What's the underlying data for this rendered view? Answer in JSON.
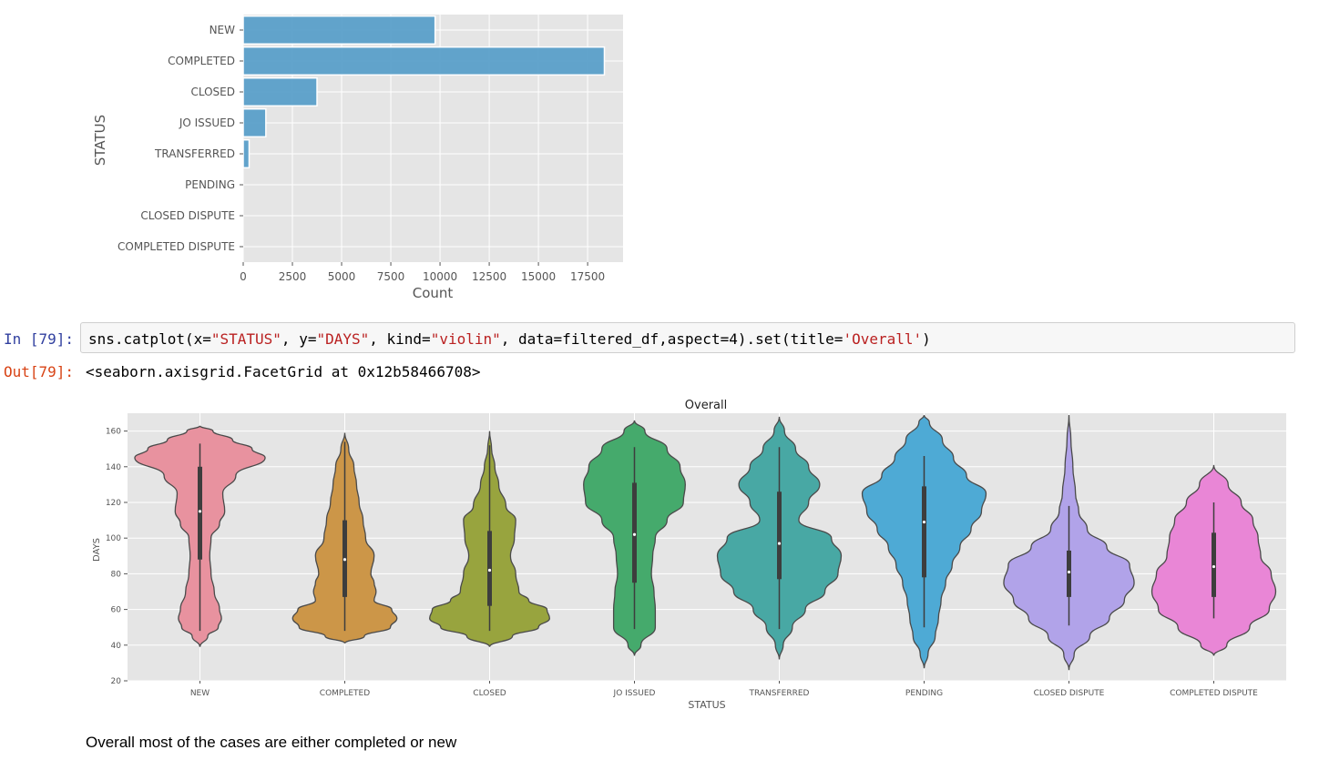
{
  "cells": {
    "in_prompt": "In [79]:",
    "code": {
      "t1": "sns.catplot(x=",
      "s1": "\"STATUS\"",
      "t2": ", y=",
      "s2": "\"DAYS\"",
      "t3": ", kind=",
      "s3": "\"violin\"",
      "t4": ", data=filtered_df,aspect=4).set(title=",
      "s4": "'Overall'",
      "t5": ")"
    },
    "out_prompt": "Out[79]:",
    "output": "<seaborn.axisgrid.FacetGrid at 0x12b58466708>",
    "markdown": "Overall most of the cases are either completed or new"
  },
  "chart_data": [
    {
      "type": "bar",
      "orientation": "horizontal",
      "categories": [
        "NEW",
        "COMPLETED",
        "CLOSED",
        "JO ISSUED",
        "TRANSFERRED",
        "PENDING",
        "CLOSED DISPUTE",
        "COMPLETED DISPUTE"
      ],
      "values": [
        9750,
        18350,
        3750,
        1150,
        300,
        10,
        5,
        3
      ],
      "xlabel": "Count",
      "ylabel": "STATUS",
      "xticks": [
        0,
        2500,
        5000,
        7500,
        10000,
        12500,
        15000,
        17500
      ],
      "xlim": [
        0,
        19300
      ],
      "bar_color": "#5a9fc9",
      "grid": true
    },
    {
      "type": "violin",
      "title": "Overall",
      "xlabel": "STATUS",
      "ylabel": "DAYS",
      "ylim": [
        20,
        170
      ],
      "yticks": [
        20,
        40,
        60,
        80,
        100,
        120,
        140,
        160
      ],
      "grid": true,
      "series": [
        {
          "name": "NEW",
          "color": "#e8929f",
          "min": 48,
          "q1": 88,
          "median": 115,
          "q3": 140,
          "max": 153,
          "kde_range": [
            39,
            163
          ],
          "profile": [
            [
              39,
              0
            ],
            [
              45,
              0.12
            ],
            [
              50,
              0.28
            ],
            [
              55,
              0.33
            ],
            [
              60,
              0.3
            ],
            [
              70,
              0.22
            ],
            [
              80,
              0.17
            ],
            [
              90,
              0.15
            ],
            [
              100,
              0.17
            ],
            [
              108,
              0.3
            ],
            [
              115,
              0.38
            ],
            [
              125,
              0.35
            ],
            [
              135,
              0.55
            ],
            [
              145,
              1.0
            ],
            [
              150,
              0.8
            ],
            [
              155,
              0.5
            ],
            [
              160,
              0.2
            ],
            [
              163,
              0
            ]
          ]
        },
        {
          "name": "COMPLETED",
          "color": "#cc9648",
          "min": 48,
          "q1": 67,
          "median": 88,
          "q3": 110,
          "max": 154,
          "kde_range": [
            41,
            159
          ],
          "profile": [
            [
              41,
              0
            ],
            [
              45,
              0.3
            ],
            [
              50,
              0.7
            ],
            [
              55,
              0.8
            ],
            [
              60,
              0.72
            ],
            [
              65,
              0.45
            ],
            [
              70,
              0.48
            ],
            [
              75,
              0.45
            ],
            [
              80,
              0.4
            ],
            [
              90,
              0.45
            ],
            [
              100,
              0.32
            ],
            [
              110,
              0.28
            ],
            [
              120,
              0.22
            ],
            [
              130,
              0.18
            ],
            [
              140,
              0.14
            ],
            [
              150,
              0.06
            ],
            [
              159,
              0
            ]
          ]
        },
        {
          "name": "CLOSED",
          "color": "#98a43e",
          "min": 48,
          "q1": 62,
          "median": 82,
          "q3": 104,
          "max": 152,
          "kde_range": [
            39,
            160
          ],
          "profile": [
            [
              39,
              0
            ],
            [
              45,
              0.35
            ],
            [
              50,
              0.75
            ],
            [
              55,
              0.92
            ],
            [
              60,
              0.88
            ],
            [
              65,
              0.6
            ],
            [
              70,
              0.45
            ],
            [
              80,
              0.4
            ],
            [
              90,
              0.32
            ],
            [
              100,
              0.38
            ],
            [
              110,
              0.4
            ],
            [
              118,
              0.25
            ],
            [
              130,
              0.14
            ],
            [
              140,
              0.08
            ],
            [
              150,
              0.03
            ],
            [
              160,
              0
            ]
          ]
        },
        {
          "name": "JO ISSUED",
          "color": "#45aa6c",
          "min": 49,
          "q1": 75,
          "median": 102,
          "q3": 131,
          "max": 151,
          "kde_range": [
            34,
            166
          ],
          "profile": [
            [
              34,
              0
            ],
            [
              40,
              0.1
            ],
            [
              50,
              0.32
            ],
            [
              60,
              0.32
            ],
            [
              70,
              0.3
            ],
            [
              80,
              0.26
            ],
            [
              90,
              0.28
            ],
            [
              100,
              0.32
            ],
            [
              110,
              0.5
            ],
            [
              120,
              0.75
            ],
            [
              130,
              0.78
            ],
            [
              140,
              0.7
            ],
            [
              150,
              0.5
            ],
            [
              160,
              0.16
            ],
            [
              166,
              0
            ]
          ]
        },
        {
          "name": "TRANSFERRED",
          "color": "#48a8a4",
          "min": 49,
          "q1": 77,
          "median": 97,
          "q3": 126,
          "max": 151,
          "kde_range": [
            32,
            168
          ],
          "profile": [
            [
              32,
              0
            ],
            [
              40,
              0.06
            ],
            [
              50,
              0.2
            ],
            [
              60,
              0.4
            ],
            [
              70,
              0.7
            ],
            [
              80,
              0.9
            ],
            [
              90,
              0.95
            ],
            [
              100,
              0.8
            ],
            [
              110,
              0.3
            ],
            [
              120,
              0.45
            ],
            [
              130,
              0.62
            ],
            [
              140,
              0.45
            ],
            [
              150,
              0.25
            ],
            [
              160,
              0.08
            ],
            [
              168,
              0
            ]
          ]
        },
        {
          "name": "PENDING",
          "color": "#4eaad5",
          "min": 50,
          "q1": 78,
          "median": 109,
          "q3": 129,
          "max": 146,
          "kde_range": [
            27,
            169
          ],
          "profile": [
            [
              27,
              0
            ],
            [
              35,
              0.06
            ],
            [
              45,
              0.17
            ],
            [
              55,
              0.22
            ],
            [
              65,
              0.26
            ],
            [
              75,
              0.33
            ],
            [
              85,
              0.43
            ],
            [
              95,
              0.55
            ],
            [
              105,
              0.72
            ],
            [
              115,
              0.88
            ],
            [
              125,
              0.95
            ],
            [
              135,
              0.65
            ],
            [
              145,
              0.45
            ],
            [
              155,
              0.28
            ],
            [
              165,
              0.08
            ],
            [
              169,
              0
            ]
          ]
        },
        {
          "name": "CLOSED DISPUTE",
          "color": "#b1a3e9",
          "min": 51,
          "q1": 67,
          "median": 81,
          "q3": 93,
          "max": 118,
          "kde_range": [
            26,
            169
          ],
          "profile": [
            [
              26,
              0
            ],
            [
              35,
              0.08
            ],
            [
              45,
              0.32
            ],
            [
              55,
              0.62
            ],
            [
              65,
              0.85
            ],
            [
              75,
              1.0
            ],
            [
              85,
              0.93
            ],
            [
              95,
              0.58
            ],
            [
              105,
              0.28
            ],
            [
              115,
              0.15
            ],
            [
              125,
              0.1
            ],
            [
              140,
              0.06
            ],
            [
              155,
              0.03
            ],
            [
              169,
              0
            ]
          ]
        },
        {
          "name": "COMPLETED DISPUTE",
          "color": "#e986d6",
          "min": 55,
          "q1": 67,
          "median": 84,
          "q3": 103,
          "max": 120,
          "kde_range": [
            34,
            141
          ],
          "profile": [
            [
              34,
              0
            ],
            [
              40,
              0.2
            ],
            [
              50,
              0.55
            ],
            [
              60,
              0.85
            ],
            [
              70,
              0.95
            ],
            [
              80,
              0.88
            ],
            [
              90,
              0.72
            ],
            [
              100,
              0.68
            ],
            [
              110,
              0.6
            ],
            [
              120,
              0.42
            ],
            [
              130,
              0.22
            ],
            [
              141,
              0
            ]
          ]
        }
      ]
    }
  ]
}
